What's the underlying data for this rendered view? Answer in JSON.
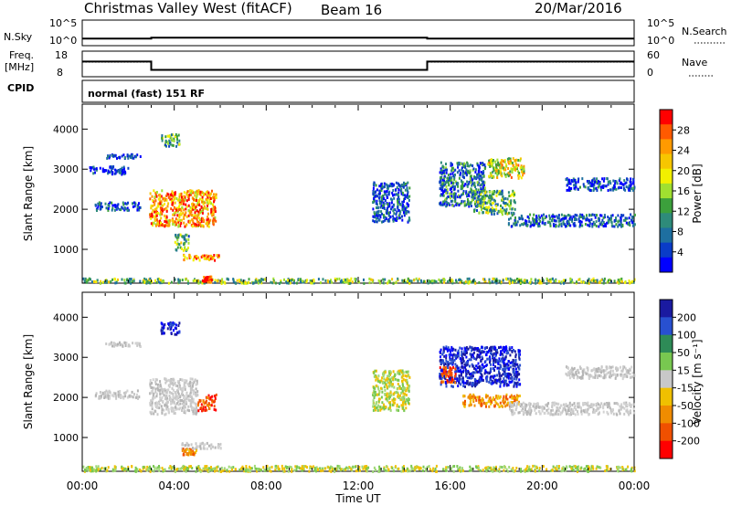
{
  "header": {
    "title": "Christmas Valley West (fitACF)",
    "beam": "Beam 16",
    "date": "20/Mar/2016"
  },
  "panels": {
    "nsky_label": "N.Sky",
    "nsky_ticks": [
      "10^5",
      "10^0"
    ],
    "nsearch_label": "N.Search",
    "nsearch_ticks": [
      "10^5",
      "10^0"
    ],
    "freq_label_1": "Freq.",
    "freq_label_2": "[MHz]",
    "freq_ticks": [
      "18",
      "8"
    ],
    "nave_label": "Nave",
    "nave_ticks": [
      "60",
      "0"
    ],
    "cpid_label": "CPID",
    "cpid_text": "normal (fast) 151 RF"
  },
  "chart_data": [
    {
      "type": "line",
      "name": "nsky-nsearch",
      "x_hours": [
        0,
        3,
        3,
        15,
        15,
        24
      ],
      "nsky_log": [
        0.6,
        0.6,
        0.8,
        0.8,
        0.6,
        0.6
      ],
      "nsearch_log": [
        0.6,
        0.6,
        0.8,
        0.8,
        0.6,
        0.6
      ]
    },
    {
      "type": "line",
      "name": "freq-nave",
      "x_hours": [
        0,
        3,
        3,
        15,
        15,
        24
      ],
      "freq_mhz": [
        14,
        14,
        10.5,
        10.5,
        14,
        14
      ],
      "nave": [
        35,
        35,
        15,
        15,
        35,
        35
      ]
    },
    {
      "type": "heatmap",
      "name": "power",
      "xlabel": "",
      "ylabel": "Slant Range [km]",
      "xlim": [
        0,
        24
      ],
      "ylim": [
        180,
        4600
      ],
      "yticks": [
        1000,
        2000,
        3000,
        4000
      ],
      "colorbar": {
        "label": "Power [dB]",
        "ticks": [
          "28",
          "24",
          "20",
          "16",
          "12",
          "8",
          "4"
        ],
        "colors": [
          "#ff0000",
          "#ff5a00",
          "#ff9a00",
          "#f7c600",
          "#f2f000",
          "#a0e030",
          "#3ca03c",
          "#2e8b7a",
          "#1e6fa0",
          "#0a3cc8",
          "#0000ff"
        ]
      },
      "regions": [
        {
          "x": [
            0.0,
            24.0
          ],
          "y": [
            180,
            300
          ],
          "level": 0.45
        },
        {
          "x": [
            0.5,
            2.5
          ],
          "y": [
            2000,
            2200
          ],
          "level": 0.2
        },
        {
          "x": [
            0.3,
            2.0
          ],
          "y": [
            2900,
            3100
          ],
          "level": 0.1
        },
        {
          "x": [
            1.0,
            2.5
          ],
          "y": [
            3300,
            3400
          ],
          "level": 0.1
        },
        {
          "x": [
            2.9,
            5.8
          ],
          "y": [
            1600,
            2500
          ],
          "level": 0.75
        },
        {
          "x": [
            3.4,
            4.2
          ],
          "y": [
            3600,
            3900
          ],
          "level": 0.35
        },
        {
          "x": [
            4.3,
            6.0
          ],
          "y": [
            750,
            900
          ],
          "level": 0.8
        },
        {
          "x": [
            4.0,
            4.6
          ],
          "y": [
            1000,
            1400
          ],
          "level": 0.4
        },
        {
          "x": [
            5.2,
            5.6
          ],
          "y": [
            200,
            350
          ],
          "level": 0.95
        },
        {
          "x": [
            12.6,
            14.2
          ],
          "y": [
            1700,
            2700
          ],
          "level": 0.15
        },
        {
          "x": [
            15.5,
            17.5
          ],
          "y": [
            2100,
            3200
          ],
          "level": 0.25
        },
        {
          "x": [
            17.6,
            19.2
          ],
          "y": [
            2800,
            3300
          ],
          "level": 0.6
        },
        {
          "x": [
            17.0,
            18.8
          ],
          "y": [
            1900,
            2500
          ],
          "level": 0.4
        },
        {
          "x": [
            18.5,
            24.0
          ],
          "y": [
            1600,
            1900
          ],
          "level": 0.2
        },
        {
          "x": [
            21.0,
            24.0
          ],
          "y": [
            2500,
            2800
          ],
          "level": 0.15
        }
      ]
    },
    {
      "type": "heatmap",
      "name": "velocity",
      "xlabel": "Time UT",
      "ylabel": "Slant Range [km]",
      "xlim": [
        0,
        24
      ],
      "ylim": [
        180,
        4600
      ],
      "yticks": [
        1000,
        2000,
        3000,
        4000
      ],
      "xticks": [
        "00:00",
        "04:00",
        "08:00",
        "12:00",
        "16:00",
        "20:00",
        "00:00"
      ],
      "colorbar": {
        "label": "Velocity [m s⁻¹]",
        "ticks": [
          "200",
          "100",
          "50",
          "15",
          "-15",
          "-50",
          "-100",
          "-200"
        ],
        "colors": [
          "#1a1aa0",
          "#2850d0",
          "#2e8b57",
          "#78c850",
          "#c8c8c8",
          "#f0c000",
          "#f08c00",
          "#f05000",
          "#ff0000"
        ]
      },
      "regions": [
        {
          "x": [
            0.0,
            24.0
          ],
          "y": [
            180,
            320
          ],
          "cls": "green"
        },
        {
          "x": [
            0.5,
            2.5
          ],
          "y": [
            2000,
            2200
          ],
          "cls": "grey"
        },
        {
          "x": [
            1.0,
            2.5
          ],
          "y": [
            3300,
            3400
          ],
          "cls": "grey"
        },
        {
          "x": [
            2.9,
            5.0
          ],
          "y": [
            1600,
            2500
          ],
          "cls": "grey"
        },
        {
          "x": [
            5.0,
            5.8
          ],
          "y": [
            1700,
            2100
          ],
          "cls": "red"
        },
        {
          "x": [
            3.4,
            4.2
          ],
          "y": [
            3600,
            3900
          ],
          "cls": "blue"
        },
        {
          "x": [
            4.3,
            6.0
          ],
          "y": [
            750,
            900
          ],
          "cls": "grey"
        },
        {
          "x": [
            4.3,
            5.0
          ],
          "y": [
            600,
            750
          ],
          "cls": "orange"
        },
        {
          "x": [
            12.6,
            14.2
          ],
          "y": [
            1700,
            2700
          ],
          "cls": "green"
        },
        {
          "x": [
            15.5,
            19.0
          ],
          "y": [
            2300,
            3300
          ],
          "cls": "blue"
        },
        {
          "x": [
            15.5,
            16.2
          ],
          "y": [
            2400,
            2800
          ],
          "cls": "red"
        },
        {
          "x": [
            16.5,
            19.0
          ],
          "y": [
            1800,
            2100
          ],
          "cls": "orange"
        },
        {
          "x": [
            18.5,
            24.0
          ],
          "y": [
            1600,
            1900
          ],
          "cls": "grey"
        },
        {
          "x": [
            21.0,
            24.0
          ],
          "y": [
            2500,
            2800
          ],
          "cls": "grey"
        }
      ]
    }
  ]
}
